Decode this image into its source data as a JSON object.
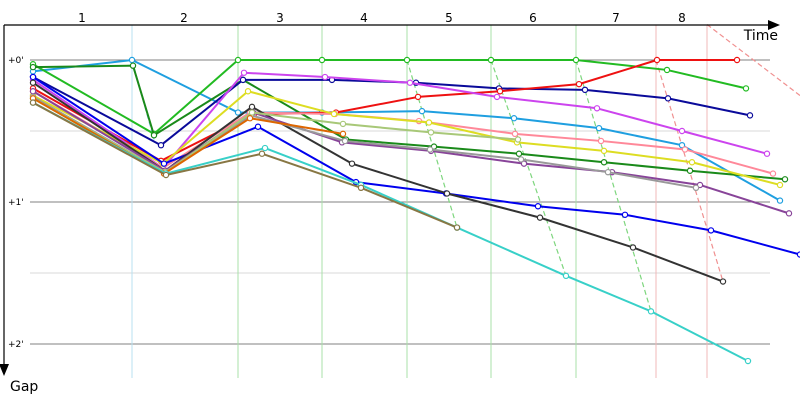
{
  "chart_data": {
    "type": "line",
    "title": "",
    "xlabel": "Time",
    "ylabel": "Gap",
    "lap_labels": [
      "1",
      "2",
      "3",
      "4",
      "5",
      "6",
      "7",
      "8"
    ],
    "y_ticks": [
      {
        "label": "+0'",
        "value": 0
      },
      {
        "label": "+1'",
        "value": 1
      },
      {
        "label": "+2'",
        "value": 2
      }
    ],
    "xlim": [
      0,
      800
    ],
    "ylim": [
      -0.36,
      2.17
    ],
    "grid": true,
    "legend": "none",
    "vertical_lines": [
      {
        "x": 132,
        "color": "#b8e0f0"
      },
      {
        "x": 238,
        "color": "#a8e0a8"
      },
      {
        "x": 322,
        "color": "#a8e0a8"
      },
      {
        "x": 407,
        "color": "#a8e0a8"
      },
      {
        "x": 491,
        "color": "#a8e0a8"
      },
      {
        "x": 576,
        "color": "#a8e0a8"
      },
      {
        "x": 656,
        "color": "#f0b8b8"
      },
      {
        "x": 707,
        "color": "#f0b8b8"
      }
    ],
    "connectors": [
      {
        "color": "#7ec8e8",
        "points": [
          [
            132,
            0
          ],
          [
            154,
            0.56
          ]
        ]
      },
      {
        "color": "#7ed67e",
        "points": [
          [
            407,
            0
          ],
          [
            457,
            1.18
          ]
        ]
      },
      {
        "color": "#7ed67e",
        "points": [
          [
            491,
            0
          ],
          [
            566,
            1.52
          ]
        ]
      },
      {
        "color": "#7ed67e",
        "points": [
          [
            576,
            0
          ],
          [
            651,
            1.77
          ]
        ]
      },
      {
        "color": "#f09090",
        "points": [
          [
            656,
            0
          ],
          [
            723,
            1.56
          ]
        ]
      },
      {
        "color": "#f09090",
        "points": [
          [
            707,
            -0.25
          ],
          [
            800,
            0.25
          ]
        ]
      }
    ],
    "series": [
      {
        "color": "#1f9fe0",
        "points": [
          [
            33,
            0.08
          ],
          [
            132,
            0
          ],
          [
            238,
            0.37
          ],
          [
            322,
            0.37
          ],
          [
            422,
            0.36
          ],
          [
            514,
            0.41
          ],
          [
            599,
            0.48
          ],
          [
            682,
            0.6
          ],
          [
            780,
            0.99
          ]
        ]
      },
      {
        "color": "#22bb22",
        "points": [
          [
            33,
            0.03
          ],
          [
            154,
            0.52
          ],
          [
            238,
            0
          ],
          [
            322,
            0
          ],
          [
            407,
            0
          ],
          [
            491,
            0
          ],
          [
            576,
            0
          ],
          [
            667,
            0.07
          ],
          [
            746,
            0.2
          ]
        ]
      },
      {
        "color": "#1a8a1a",
        "points": [
          [
            33,
            0.05
          ],
          [
            133,
            0.04
          ],
          [
            154,
            0.53
          ],
          [
            243,
            0.14
          ],
          [
            346,
            0.56
          ],
          [
            434,
            0.61
          ],
          [
            519,
            0.66
          ],
          [
            604,
            0.72
          ],
          [
            690,
            0.78
          ],
          [
            785,
            0.84
          ]
        ]
      },
      {
        "color": "#0a0a9a",
        "points": [
          [
            33,
            0.12
          ],
          [
            161,
            0.6
          ],
          [
            243,
            0.14
          ],
          [
            332,
            0.14
          ],
          [
            416,
            0.16
          ],
          [
            499,
            0.2
          ],
          [
            585,
            0.21
          ],
          [
            668,
            0.27
          ],
          [
            750,
            0.39
          ]
        ]
      },
      {
        "color": "#ee1111",
        "points": [
          [
            33,
            0.2
          ],
          [
            161,
            0.71
          ],
          [
            254,
            0.38
          ],
          [
            336,
            0.37
          ],
          [
            418,
            0.26
          ],
          [
            500,
            0.22
          ],
          [
            579,
            0.17
          ],
          [
            657,
            0
          ],
          [
            737,
            0
          ]
        ]
      },
      {
        "color": "#cc44ee",
        "points": [
          [
            33,
            0.14
          ],
          [
            163,
            0.76
          ],
          [
            244,
            0.09
          ],
          [
            325,
            0.12
          ],
          [
            410,
            0.16
          ],
          [
            497,
            0.26
          ],
          [
            597,
            0.34
          ],
          [
            682,
            0.5
          ],
          [
            767,
            0.66
          ]
        ]
      },
      {
        "color": "#ff8899",
        "points": [
          [
            33,
            0.22
          ],
          [
            163,
            0.76
          ],
          [
            250,
            0.37
          ],
          [
            335,
            0.38
          ],
          [
            419,
            0.43
          ],
          [
            515,
            0.52
          ],
          [
            601,
            0.57
          ],
          [
            685,
            0.63
          ],
          [
            773,
            0.8
          ]
        ]
      },
      {
        "color": "#dddd22",
        "points": [
          [
            33,
            0.25
          ],
          [
            163,
            0.73
          ],
          [
            248,
            0.22
          ],
          [
            334,
            0.38
          ],
          [
            429,
            0.44
          ],
          [
            517,
            0.58
          ],
          [
            604,
            0.64
          ],
          [
            692,
            0.72
          ],
          [
            780,
            0.88
          ]
        ]
      },
      {
        "color": "#0000ee",
        "points": [
          [
            33,
            0.12
          ],
          [
            164,
            0.73
          ],
          [
            258,
            0.47
          ],
          [
            356,
            0.86
          ],
          [
            446,
            0.94
          ],
          [
            538,
            1.03
          ],
          [
            625,
            1.09
          ],
          [
            711,
            1.2
          ],
          [
            800,
            1.37
          ]
        ]
      },
      {
        "color": "#333333",
        "points": [
          [
            33,
            0.16
          ],
          [
            165,
            0.78
          ],
          [
            252,
            0.33
          ],
          [
            352,
            0.73
          ],
          [
            447,
            0.94
          ],
          [
            540,
            1.11
          ],
          [
            633,
            1.32
          ],
          [
            723,
            1.56
          ]
        ]
      },
      {
        "color": "#884499",
        "points": [
          [
            33,
            0.22
          ],
          [
            165,
            0.78
          ],
          [
            253,
            0.37
          ],
          [
            342,
            0.58
          ],
          [
            431,
            0.64
          ],
          [
            524,
            0.73
          ],
          [
            612,
            0.79
          ],
          [
            700,
            0.88
          ],
          [
            789,
            1.08
          ]
        ]
      },
      {
        "color": "#999999",
        "points": [
          [
            33,
            0.26
          ],
          [
            165,
            0.79
          ],
          [
            251,
            0.39
          ],
          [
            345,
            0.57
          ],
          [
            430,
            0.63
          ],
          [
            521,
            0.7
          ],
          [
            608,
            0.79
          ],
          [
            696,
            0.9
          ]
        ]
      },
      {
        "color": "#a8c878",
        "points": [
          [
            33,
            0.27
          ],
          [
            165,
            0.79
          ],
          [
            252,
            0.37
          ],
          [
            343,
            0.45
          ],
          [
            431,
            0.51
          ],
          [
            518,
            0.56
          ]
        ]
      },
      {
        "color": "#dd6600",
        "points": [
          [
            33,
            0.27
          ],
          [
            164,
            0.8
          ],
          [
            250,
            0.41
          ],
          [
            343,
            0.52
          ]
        ]
      },
      {
        "color": "#38d0c8",
        "points": [
          [
            33,
            0.3
          ],
          [
            166,
            0.8
          ],
          [
            265,
            0.62
          ],
          [
            361,
            0.88
          ],
          [
            457,
            1.18
          ],
          [
            566,
            1.52
          ],
          [
            651,
            1.77
          ],
          [
            748,
            2.12
          ]
        ]
      },
      {
        "color": "#887744",
        "points": [
          [
            33,
            0.3
          ],
          [
            166,
            0.81
          ],
          [
            262,
            0.66
          ],
          [
            361,
            0.9
          ],
          [
            457,
            1.18
          ]
        ]
      }
    ]
  }
}
